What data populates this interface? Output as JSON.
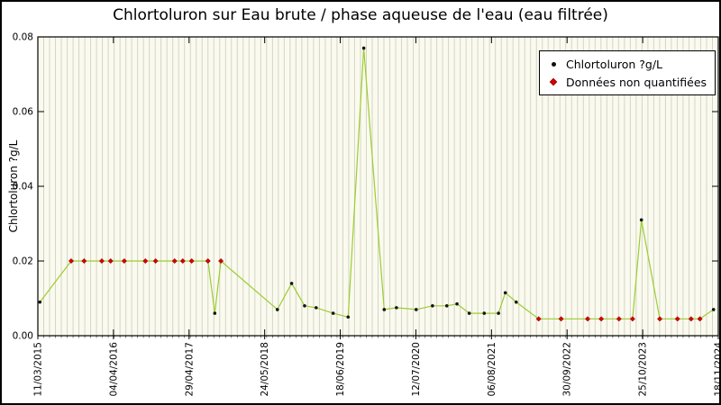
{
  "chart_data": {
    "type": "line",
    "title": "Chlortoluron sur Eau brute / phase aqueuse de l'eau (eau filtrée)",
    "ylabel": "Chlortoluron ?g/L",
    "xlabel": "",
    "ylim": [
      0,
      0.08
    ],
    "yticks": [
      "0.00",
      "0.02",
      "0.04",
      "0.06",
      "0.08"
    ],
    "x_tick_labels": [
      "11/03/2015",
      "04/04/2016",
      "29/04/2017",
      "24/05/2018",
      "18/06/2019",
      "12/07/2020",
      "06/08/2021",
      "30/09/2022",
      "25/10/2023",
      "18/11/2024"
    ],
    "legend": [
      {
        "label": "Chlortoluron ?g/L",
        "marker": "dot",
        "color": "#111111"
      },
      {
        "label": "Données non quantifiées",
        "marker": "diamond",
        "color": "#d40000"
      }
    ],
    "legend_position": "top-right",
    "grid": "vertical-minor-only",
    "minor_gridlines": 116,
    "colors": {
      "line": "#9acd32",
      "point": "#141414",
      "nonquantified": "#d40000",
      "plot_bg": "#fbfaee",
      "grid": "#d4d4c8",
      "axis": "#000000"
    },
    "points": [
      {
        "x": 0.003,
        "y": 0.009,
        "quantified": true
      },
      {
        "x": 0.049,
        "y": 0.02,
        "quantified": false
      },
      {
        "x": 0.068,
        "y": 0.02,
        "quantified": false
      },
      {
        "x": 0.094,
        "y": 0.02,
        "quantified": false
      },
      {
        "x": 0.107,
        "y": 0.02,
        "quantified": false
      },
      {
        "x": 0.127,
        "y": 0.02,
        "quantified": false
      },
      {
        "x": 0.158,
        "y": 0.02,
        "quantified": false
      },
      {
        "x": 0.173,
        "y": 0.02,
        "quantified": false
      },
      {
        "x": 0.201,
        "y": 0.02,
        "quantified": false
      },
      {
        "x": 0.213,
        "y": 0.02,
        "quantified": false
      },
      {
        "x": 0.226,
        "y": 0.02,
        "quantified": false
      },
      {
        "x": 0.25,
        "y": 0.02,
        "quantified": false
      },
      {
        "x": 0.26,
        "y": 0.006,
        "quantified": true
      },
      {
        "x": 0.269,
        "y": 0.02,
        "quantified": false
      },
      {
        "x": 0.352,
        "y": 0.007,
        "quantified": true
      },
      {
        "x": 0.373,
        "y": 0.014,
        "quantified": true
      },
      {
        "x": 0.392,
        "y": 0.008,
        "quantified": true
      },
      {
        "x": 0.409,
        "y": 0.0075,
        "quantified": true
      },
      {
        "x": 0.434,
        "y": 0.006,
        "quantified": true
      },
      {
        "x": 0.456,
        "y": 0.005,
        "quantified": true
      },
      {
        "x": 0.479,
        "y": 0.077,
        "quantified": true
      },
      {
        "x": 0.509,
        "y": 0.007,
        "quantified": true
      },
      {
        "x": 0.527,
        "y": 0.0075,
        "quantified": true
      },
      {
        "x": 0.556,
        "y": 0.007,
        "quantified": true
      },
      {
        "x": 0.58,
        "y": 0.008,
        "quantified": true
      },
      {
        "x": 0.601,
        "y": 0.008,
        "quantified": true
      },
      {
        "x": 0.616,
        "y": 0.0085,
        "quantified": true
      },
      {
        "x": 0.634,
        "y": 0.006,
        "quantified": true
      },
      {
        "x": 0.656,
        "y": 0.006,
        "quantified": true
      },
      {
        "x": 0.677,
        "y": 0.006,
        "quantified": true
      },
      {
        "x": 0.687,
        "y": 0.0115,
        "quantified": true
      },
      {
        "x": 0.703,
        "y": 0.009,
        "quantified": true
      },
      {
        "x": 0.736,
        "y": 0.0045,
        "quantified": false
      },
      {
        "x": 0.769,
        "y": 0.0045,
        "quantified": false
      },
      {
        "x": 0.808,
        "y": 0.0045,
        "quantified": false
      },
      {
        "x": 0.828,
        "y": 0.0045,
        "quantified": false
      },
      {
        "x": 0.854,
        "y": 0.0045,
        "quantified": false
      },
      {
        "x": 0.874,
        "y": 0.0045,
        "quantified": false
      },
      {
        "x": 0.887,
        "y": 0.031,
        "quantified": true
      },
      {
        "x": 0.914,
        "y": 0.0045,
        "quantified": false
      },
      {
        "x": 0.94,
        "y": 0.0045,
        "quantified": false
      },
      {
        "x": 0.96,
        "y": 0.0045,
        "quantified": false
      },
      {
        "x": 0.973,
        "y": 0.0045,
        "quantified": false
      },
      {
        "x": 0.993,
        "y": 0.007,
        "quantified": true
      }
    ]
  }
}
